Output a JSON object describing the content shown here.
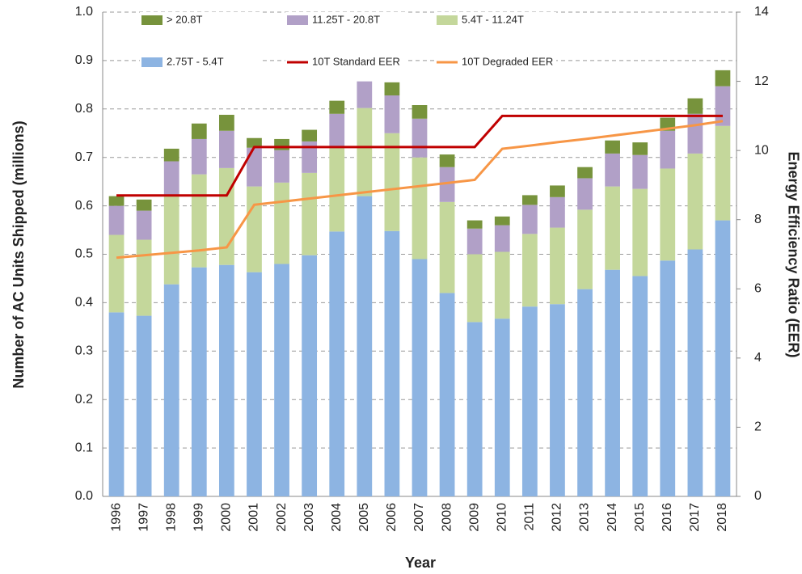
{
  "chart_data": {
    "type": "bar",
    "stacked": true,
    "x_label": "Year",
    "y_label": "Number of AC Units Shipped (millions)",
    "y2_label": "Energy Efficiency Ratio (EER)",
    "categories": [
      "1996",
      "1997",
      "1998",
      "1999",
      "2000",
      "2001",
      "2002",
      "2003",
      "2004",
      "2005",
      "2006",
      "2007",
      "2008",
      "2009",
      "2010",
      "2011",
      "2012",
      "2013",
      "2014",
      "2015",
      "2016",
      "2017",
      "2018"
    ],
    "ylim": [
      0,
      1.0
    ],
    "yticks": [
      {
        "value": 0,
        "label": "0.0"
      },
      0.1,
      0.2,
      0.3,
      0.4,
      0.5,
      0.6,
      0.7,
      0.8,
      0.9,
      {
        "value": 1,
        "label": "1.0"
      }
    ],
    "y2lim": [
      0,
      14
    ],
    "y2ticks": [
      0,
      2,
      4,
      6,
      8,
      10,
      12,
      14
    ],
    "grid": true,
    "series": [
      {
        "name": "2.75T - 5.4T",
        "color": "#8db4e2",
        "values": [
          0.38,
          0.373,
          0.438,
          0.473,
          0.478,
          0.463,
          0.48,
          0.498,
          0.547,
          0.62,
          0.548,
          0.49,
          0.42,
          0.36,
          0.367,
          0.392,
          0.397,
          0.428,
          0.468,
          0.455,
          0.487,
          0.51,
          0.57
        ]
      },
      {
        "name": "5.4T - 11.24T",
        "color": "#c4d79b",
        "values": [
          0.16,
          0.157,
          0.182,
          0.192,
          0.2,
          0.177,
          0.168,
          0.17,
          0.173,
          0.182,
          0.202,
          0.21,
          0.188,
          0.14,
          0.138,
          0.15,
          0.158,
          0.164,
          0.172,
          0.18,
          0.19,
          0.198,
          0.195
        ]
      },
      {
        "name": "11.25T - 20.8T",
        "color": "#b1a0c7",
        "values": [
          0.06,
          0.06,
          0.072,
          0.073,
          0.077,
          0.08,
          0.067,
          0.065,
          0.07,
          0.055,
          0.078,
          0.08,
          0.072,
          0.053,
          0.055,
          0.06,
          0.063,
          0.065,
          0.068,
          0.07,
          0.078,
          0.082,
          0.082
        ]
      },
      {
        "name": "> 20.8T",
        "color": "#77933c",
        "values": [
          0.02,
          0.023,
          0.026,
          0.032,
          0.033,
          0.02,
          0.023,
          0.024,
          0.027,
          0,
          0.027,
          0.028,
          0.026,
          0.017,
          0.018,
          0.02,
          0.024,
          0.023,
          0.027,
          0.026,
          0.027,
          0.032,
          0.033
        ]
      },
      {
        "name": "10T Standard EER",
        "type": "line",
        "axis": "y2",
        "color": "#c00000",
        "values": [
          8.7,
          8.7,
          8.7,
          8.7,
          8.7,
          10.1,
          10.1,
          10.1,
          10.1,
          10.1,
          10.1,
          10.1,
          10.1,
          10.1,
          11,
          11,
          11,
          11,
          11,
          11,
          11,
          11,
          11
        ]
      },
      {
        "name": "10T Degraded EER",
        "type": "line",
        "axis": "y2",
        "color": "#f79646",
        "values": [
          6.9,
          6.97,
          7.04,
          7.11,
          7.2,
          8.43,
          8.52,
          8.61,
          8.7,
          8.79,
          8.88,
          8.97,
          9.06,
          9.15,
          10.05,
          10.14,
          10.24,
          10.33,
          10.43,
          10.53,
          10.63,
          10.73,
          10.85
        ]
      }
    ]
  }
}
